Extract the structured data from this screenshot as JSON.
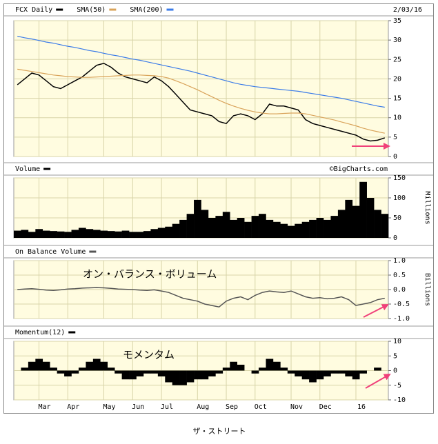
{
  "chart_data": [
    {
      "type": "line",
      "date": "2/03/16",
      "ylim": [
        0,
        35
      ],
      "yticks": [
        0,
        5,
        10,
        15,
        20,
        25,
        30,
        35
      ],
      "series": [
        {
          "name": "FCX Daily",
          "color": "#000000",
          "values": [
            18.5,
            20,
            21.5,
            21,
            19.5,
            18,
            17.5,
            18.5,
            19.5,
            20.5,
            22,
            23.5,
            24,
            23,
            21.5,
            20.5,
            20,
            19.5,
            19,
            20.5,
            19.5,
            18,
            16,
            14,
            12,
            11.5,
            11,
            10.5,
            9,
            8.5,
            10.5,
            11,
            10.5,
            9.5,
            11,
            13.5,
            13,
            13,
            12.5,
            12,
            9.5,
            8.5,
            8,
            7.5,
            7,
            6.5,
            6,
            5.5,
            4.5,
            4,
            4.2,
            4.8
          ]
        },
        {
          "name": "SMA(50)",
          "color": "#d9a35a",
          "values": [
            22.5,
            22.2,
            21.9,
            21.6,
            21.3,
            21,
            20.8,
            20.6,
            20.5,
            20.4,
            20.4,
            20.5,
            20.6,
            20.7,
            20.8,
            20.9,
            21,
            21,
            20.9,
            20.8,
            20.6,
            20.2,
            19.5,
            18.8,
            18,
            17.2,
            16.3,
            15.4,
            14.5,
            13.7,
            13,
            12.4,
            11.9,
            11.5,
            11.2,
            11,
            11,
            11.1,
            11.2,
            11.2,
            11,
            10.6,
            10.2,
            9.8,
            9.4,
            8.9,
            8.4,
            7.9,
            7.3,
            6.8,
            6.4,
            6
          ]
        },
        {
          "name": "SMA(200)",
          "color": "#3a7be8",
          "values": [
            31,
            30.6,
            30.3,
            29.9,
            29.5,
            29.2,
            28.8,
            28.4,
            28.1,
            27.7,
            27.3,
            27,
            26.6,
            26.2,
            25.9,
            25.5,
            25.1,
            24.8,
            24.4,
            24,
            23.6,
            23.2,
            22.8,
            22.4,
            22,
            21.5,
            21,
            20.5,
            20,
            19.5,
            19,
            18.6,
            18.3,
            18,
            17.8,
            17.6,
            17.4,
            17.2,
            17,
            16.8,
            16.5,
            16.2,
            15.9,
            15.6,
            15.3,
            15,
            14.6,
            14.2,
            13.8,
            13.4,
            13,
            12.7
          ]
        }
      ]
    },
    {
      "type": "bar",
      "source": "©BigCharts.com",
      "y_label": "Millions",
      "ylim": [
        0,
        150
      ],
      "yticks": [
        0,
        50,
        100,
        150
      ],
      "series": [
        {
          "name": "Volume",
          "color": "#000000",
          "values": [
            18,
            20,
            15,
            22,
            18,
            17,
            16,
            15,
            20,
            25,
            22,
            20,
            18,
            17,
            16,
            18,
            15,
            15,
            17,
            22,
            25,
            28,
            35,
            45,
            60,
            95,
            70,
            50,
            55,
            65,
            45,
            50,
            40,
            55,
            60,
            45,
            40,
            35,
            30,
            35,
            40,
            45,
            50,
            45,
            55,
            70,
            95,
            80,
            140,
            100,
            70,
            60
          ]
        }
      ]
    },
    {
      "type": "line",
      "y_label": "Billions",
      "annotation": "オン・バランス・ボリューム",
      "ylim": [
        -1,
        1
      ],
      "yticks": [
        {
          "value": 1,
          "label": "1.0"
        },
        {
          "value": 0.5,
          "label": "0.5"
        },
        {
          "value": 0,
          "label": "0.0"
        },
        {
          "value": -0.5,
          "label": "-0.5"
        },
        {
          "value": -1,
          "label": "-1.0"
        }
      ],
      "series": [
        {
          "name": "On Balance Volume",
          "color": "#555555",
          "values": [
            0,
            0.02,
            0.03,
            0.01,
            -0.02,
            -0.03,
            -0.01,
            0.02,
            0.03,
            0.05,
            0.06,
            0.07,
            0.06,
            0.04,
            0.02,
            0.01,
            0,
            -0.02,
            -0.03,
            -0.01,
            -0.05,
            -0.1,
            -0.2,
            -0.3,
            -0.35,
            -0.4,
            -0.5,
            -0.55,
            -0.6,
            -0.4,
            -0.3,
            -0.25,
            -0.35,
            -0.2,
            -0.1,
            -0.05,
            -0.08,
            -0.1,
            -0.05,
            -0.15,
            -0.25,
            -0.3,
            -0.28,
            -0.32,
            -0.3,
            -0.25,
            -0.35,
            -0.55,
            -0.5,
            -0.45,
            -0.35,
            -0.3
          ]
        }
      ]
    },
    {
      "type": "area",
      "annotation": "モメンタム",
      "ylim": [
        -10,
        10
      ],
      "yticks": [
        10,
        5,
        0,
        -5,
        -10
      ],
      "xticks": [
        {
          "value": 3,
          "label": "Mar"
        },
        {
          "value": 7,
          "label": "Apr"
        },
        {
          "value": 12,
          "label": "May"
        },
        {
          "value": 16,
          "label": "Jun"
        },
        {
          "value": 20,
          "label": "Jul"
        },
        {
          "value": 25,
          "label": "Aug"
        },
        {
          "value": 29,
          "label": "Sep"
        },
        {
          "value": 33,
          "label": "Oct"
        },
        {
          "value": 38,
          "label": "Nov"
        },
        {
          "value": 42,
          "label": "Dec"
        },
        {
          "value": 47,
          "label": "16"
        }
      ],
      "series": [
        {
          "name": "Momentum(12)",
          "color": "#000000",
          "values": [
            0,
            1,
            3,
            4,
            3,
            1,
            -1,
            -2,
            -1,
            1,
            3,
            4,
            3,
            1,
            -1,
            -3,
            -3,
            -2,
            -1,
            -1,
            -2,
            -4,
            -5,
            -5,
            -4,
            -3,
            -3,
            -2,
            -1,
            1,
            3,
            2,
            0,
            -1,
            1,
            4,
            3,
            1,
            -1,
            -2,
            -3,
            -4,
            -3,
            -2,
            -1,
            -1,
            -2,
            -3,
            -1,
            0,
            1,
            0
          ]
        }
      ]
    }
  ],
  "caption": "ザ・ストリート"
}
